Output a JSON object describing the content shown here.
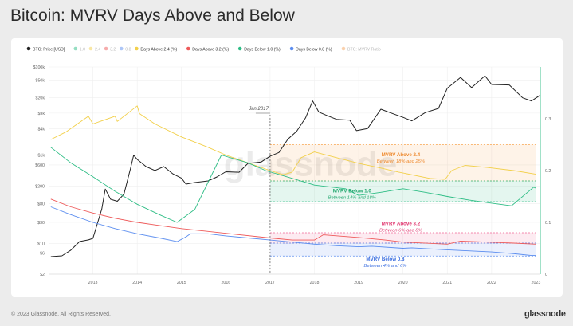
{
  "page": {
    "title": "Bitcoin: MVRV Days Above and Below",
    "footer": "© 2023 Glassnode. All Rights Reserved.",
    "brand": "glassnode",
    "watermark": "glassnode"
  },
  "chart_data": {
    "type": "line",
    "legend_position": "top",
    "grid": true,
    "legend": [
      {
        "label": "BTC: Price [USD]",
        "color": "#222222",
        "dim": false
      },
      {
        "label": "1.0",
        "color": "#2ebd85",
        "dim": true
      },
      {
        "label": "2.4",
        "color": "#f2d04b",
        "dim": true
      },
      {
        "label": "3.2",
        "color": "#ee5a5a",
        "dim": true
      },
      {
        "label": "0.8",
        "color": "#5b8def",
        "dim": true
      },
      {
        "label": "Days Above 2.4 (%)",
        "color": "#f2d04b",
        "dim": false
      },
      {
        "label": "Days Above 3.2 (%)",
        "color": "#ee5a5a",
        "dim": false
      },
      {
        "label": "Days Below 1.0 (%)",
        "color": "#2ebd85",
        "dim": false
      },
      {
        "label": "Days Below 0.8 (%)",
        "color": "#5b8def",
        "dim": false
      },
      {
        "label": "BTC: MVRV Ratio",
        "color": "#f5a35b",
        "dim": true
      }
    ],
    "x_ticks": [
      "2013",
      "2014",
      "2015",
      "2016",
      "2017",
      "2018",
      "2019",
      "2020",
      "2021",
      "2022",
      "2023"
    ],
    "x_range": [
      2012.0,
      2023.1
    ],
    "y_left": {
      "scale": "log",
      "range": [
        2,
        100000
      ],
      "ticks": [
        {
          "v": 2,
          "l": "$2"
        },
        {
          "v": 6,
          "l": "$6"
        },
        {
          "v": 10,
          "l": "$10"
        },
        {
          "v": 30,
          "l": "$30"
        },
        {
          "v": 80,
          "l": "$80"
        },
        {
          "v": 200,
          "l": "$200"
        },
        {
          "v": 600,
          "l": "$600"
        },
        {
          "v": 1000,
          "l": "$1k"
        },
        {
          "v": 4000,
          "l": "$4k"
        },
        {
          "v": 9000,
          "l": "$9k"
        },
        {
          "v": 20000,
          "l": "$20k"
        },
        {
          "v": 50000,
          "l": "$50k"
        },
        {
          "v": 100000,
          "l": "$100k"
        }
      ]
    },
    "y_right": {
      "scale": "linear",
      "range": [
        0,
        0.4
      ],
      "ticks": [
        {
          "v": 0,
          "l": "0"
        },
        {
          "v": 0.1,
          "l": "0.1"
        },
        {
          "v": 0.2,
          "l": "0.2"
        },
        {
          "v": 0.3,
          "l": "0.3"
        }
      ]
    },
    "marker": {
      "x": 2017.0,
      "label": "Jan 2017"
    },
    "series": [
      {
        "name": "BTC: Price [USD]",
        "axis": "left",
        "color": "#222222",
        "x": [
          2012.05,
          2012.3,
          2012.5,
          2012.7,
          2012.9,
          2013.0,
          2013.2,
          2013.28,
          2013.4,
          2013.55,
          2013.7,
          2013.85,
          2013.92,
          2014.0,
          2014.2,
          2014.4,
          2014.6,
          2014.8,
          2015.0,
          2015.1,
          2015.3,
          2015.6,
          2015.8,
          2016.0,
          2016.3,
          2016.5,
          2016.8,
          2017.0,
          2017.2,
          2017.4,
          2017.6,
          2017.8,
          2017.96,
          2018.1,
          2018.3,
          2018.5,
          2018.8,
          2018.95,
          2019.2,
          2019.5,
          2019.8,
          2020.0,
          2020.2,
          2020.5,
          2020.8,
          2021.0,
          2021.3,
          2021.55,
          2021.85,
          2022.0,
          2022.4,
          2022.7,
          2022.9,
          2023.1
        ],
        "y": [
          5,
          5.2,
          7,
          11,
          12,
          13,
          60,
          170,
          100,
          90,
          130,
          500,
          1000,
          800,
          550,
          450,
          550,
          380,
          300,
          220,
          240,
          260,
          320,
          420,
          410,
          650,
          700,
          950,
          1150,
          2300,
          3500,
          7000,
          17000,
          9500,
          7800,
          6500,
          6200,
          3600,
          4000,
          11000,
          8500,
          7200,
          6000,
          9200,
          11500,
          33000,
          58000,
          34000,
          63000,
          40000,
          39000,
          20000,
          17000,
          23000
        ]
      },
      {
        "name": "Days Above 2.4 (%)",
        "axis": "right",
        "color": "#f2d04b",
        "x": [
          2012.05,
          2012.4,
          2012.9,
          2013.0,
          2013.5,
          2013.55,
          2014.0,
          2014.05,
          2014.4,
          2015.0,
          2015.6,
          2016.0,
          2016.5,
          2017.0,
          2017.3,
          2017.5,
          2017.7,
          2018.0,
          2018.5,
          2019.0,
          2019.5,
          2019.9,
          2020.6,
          2020.95,
          2021.1,
          2021.4,
          2021.9,
          2022.5,
          2023.0
        ],
        "y": [
          0.26,
          0.275,
          0.305,
          0.29,
          0.305,
          0.295,
          0.325,
          0.31,
          0.29,
          0.265,
          0.245,
          0.23,
          0.215,
          0.2,
          0.192,
          0.197,
          0.225,
          0.236,
          0.225,
          0.214,
          0.205,
          0.197,
          0.185,
          0.183,
          0.2,
          0.21,
          0.206,
          0.2,
          0.193
        ]
      },
      {
        "name": "Days Below 1.0 (%)",
        "axis": "right",
        "color": "#2ebd85",
        "x": [
          2012.05,
          2012.5,
          2013.0,
          2013.5,
          2014.0,
          2014.5,
          2014.9,
          2015.3,
          2015.9,
          2016.5,
          2016.9,
          2017.5,
          2018.0,
          2018.7,
          2019.0,
          2019.5,
          2020.0,
          2020.5,
          2021.0,
          2021.5,
          2022.0,
          2022.45,
          2022.95,
          2023.0
        ],
        "y": [
          0.245,
          0.215,
          0.188,
          0.16,
          0.135,
          0.115,
          0.1,
          0.125,
          0.23,
          0.215,
          0.2,
          0.185,
          0.172,
          0.165,
          0.152,
          0.158,
          0.165,
          0.158,
          0.15,
          0.143,
          0.137,
          0.132,
          0.168,
          0.166
        ]
      },
      {
        "name": "Days Above 3.2 (%)",
        "axis": "right",
        "color": "#ee5a5a",
        "x": [
          2012.05,
          2012.5,
          2013.0,
          2013.5,
          2014.0,
          2014.5,
          2015.0,
          2016.0,
          2017.0,
          2017.5,
          2018.0,
          2018.2,
          2019.0,
          2019.6,
          2020.0,
          2021.0,
          2021.3,
          2021.9,
          2022.5,
          2023.0
        ],
        "y": [
          0.145,
          0.13,
          0.118,
          0.108,
          0.1,
          0.094,
          0.088,
          0.079,
          0.07,
          0.066,
          0.066,
          0.076,
          0.071,
          0.066,
          0.062,
          0.058,
          0.064,
          0.062,
          0.06,
          0.058
        ]
      },
      {
        "name": "Days Below 0.8 (%)",
        "axis": "right",
        "color": "#5b8def",
        "x": [
          2012.05,
          2012.5,
          2013.0,
          2013.5,
          2014.0,
          2014.5,
          2014.9,
          2015.1,
          2015.2,
          2015.6,
          2016.0,
          2016.5,
          2017.0,
          2017.5,
          2018.0,
          2018.5,
          2019.0,
          2019.3,
          2020.0,
          2020.2,
          2021.0,
          2022.0,
          2022.45,
          2022.9,
          2023.0
        ],
        "y": [
          0.13,
          0.115,
          0.1,
          0.088,
          0.078,
          0.07,
          0.063,
          0.072,
          0.078,
          0.078,
          0.074,
          0.07,
          0.066,
          0.062,
          0.058,
          0.055,
          0.053,
          0.054,
          0.05,
          0.051,
          0.047,
          0.043,
          0.04,
          0.036,
          0.036
        ]
      },
      {
        "name": "BTC: MVRV Ratio",
        "axis": "right",
        "color": "#2ebd85",
        "role": "axis-line",
        "x": [
          2023.1,
          2023.1
        ],
        "y": [
          0.0,
          0.4
        ]
      }
    ],
    "bands": [
      {
        "label": "MVRV Above 2.4",
        "sub": "Between 18% and 25%",
        "y0": 0.18,
        "y1": 0.25,
        "x0": 2017.0,
        "x1": 2023.0,
        "fill": "#f7a24a",
        "text": "#ee8a2f"
      },
      {
        "label": "MVRV Below 1.0",
        "sub": "Between 14% and 18%",
        "y0": 0.14,
        "y1": 0.18,
        "x0": 2017.0,
        "x1": 2023.0,
        "fill": "#2ebd85",
        "text": "#25a870"
      },
      {
        "label": "MVRV Above 3.2",
        "sub": "Between 6% and 8%",
        "y0": 0.06,
        "y1": 0.08,
        "x0": 2017.0,
        "x1": 2023.0,
        "fill": "#f06292",
        "text": "#e0356e"
      },
      {
        "label": "MVRV Below 0.8",
        "sub": "Between 4% and 6%",
        "y0": 0.035,
        "y1": 0.06,
        "x0": 2017.0,
        "x1": 2023.0,
        "fill": "#5b8def",
        "text": "#3c6fe0"
      }
    ]
  }
}
